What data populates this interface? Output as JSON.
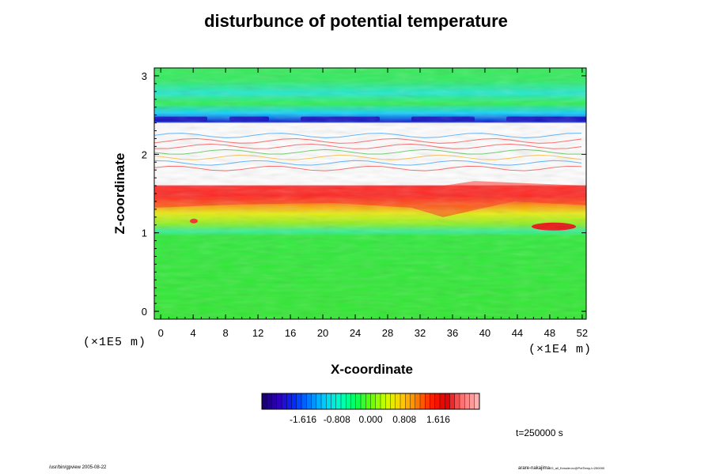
{
  "chart_data": {
    "type": "heatmap",
    "title": "disturbunce of potential temperature",
    "xlabel": "X-coordinate",
    "ylabel": "Z-coordinate",
    "x_unit": "(×1E4 m)",
    "y_unit": "(×1E5 m)",
    "x_ticks": [
      "0",
      "4",
      "8",
      "12",
      "16",
      "20",
      "24",
      "28",
      "32",
      "36",
      "40",
      "44",
      "48",
      "52"
    ],
    "y_ticks": [
      "0",
      "1",
      "2",
      "3"
    ],
    "xlim": [
      -0.8,
      52.5
    ],
    "ylim": [
      -0.1,
      3.1
    ],
    "colorbar": {
      "ticks": [
        "-1.616",
        "-0.808",
        "0.000",
        "0.808",
        "1.616"
      ],
      "range": [
        -2.6,
        2.6
      ],
      "colors": [
        "#1a0070",
        "#3000c0",
        "#0030ff",
        "#0080ff",
        "#00d0ff",
        "#00ffc0",
        "#00ff60",
        "#60ff00",
        "#d0ff00",
        "#ffd000",
        "#ff8000",
        "#ff2000",
        "#e00000",
        "#ff7070",
        "#ffb0b0"
      ]
    },
    "layers": [
      {
        "z": [
          -0.1,
          0.95
        ],
        "description_value": 0.0
      },
      {
        "z": [
          0.95,
          1.15
        ],
        "value": 0.3
      },
      {
        "z": [
          1.15,
          1.35
        ],
        "value": 0.6
      },
      {
        "z": [
          1.35,
          1.6
        ],
        "value": 1.4
      },
      {
        "z": [
          1.6,
          1.8
        ],
        "value": "undefined"
      },
      {
        "z": [
          1.8,
          2.3
        ],
        "value": "undefined-with-contours"
      },
      {
        "z": [
          2.3,
          2.5
        ],
        "value": -1.6
      },
      {
        "z": [
          2.5,
          2.75
        ],
        "value": -0.4
      },
      {
        "z": [
          2.75,
          3.1
        ],
        "value": 0.0
      }
    ],
    "time_label": "t=250000 s"
  },
  "footer": {
    "left": "/usr/bin/gpview 2005-08-22",
    "right_main": "arare-nakajima",
    "right_sub": "03_all_Kessler.nc@PotTemp,t=250000"
  }
}
